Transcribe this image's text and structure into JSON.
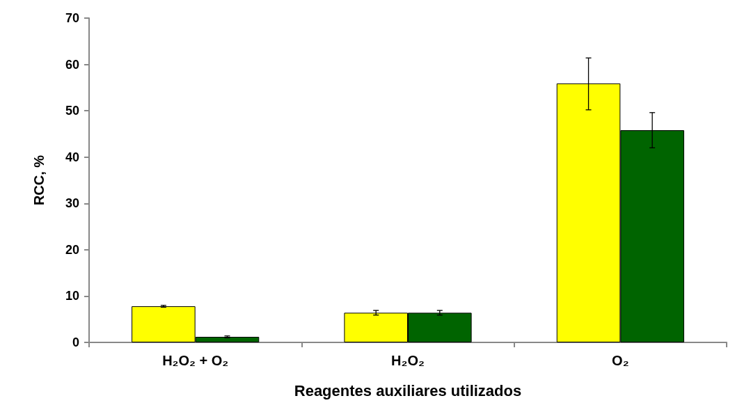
{
  "chart_data": {
    "type": "bar",
    "xlabel": "Reagentes auxiliares utilizados",
    "ylabel": "RCC, %",
    "categories": [
      "H₂O₂ + O₂",
      "H₂O₂",
      "O₂"
    ],
    "series": [
      {
        "color": "#ffff00",
        "values": [
          7.8,
          6.4,
          55.9
        ],
        "errors": [
          0.2,
          0.5,
          [
            50.2,
            61.4
          ]
        ]
      },
      {
        "color": "#006400",
        "values": [
          1.2,
          6.4,
          45.8
        ],
        "errors": [
          0.2,
          0.5,
          [
            42.0,
            49.6
          ]
        ]
      }
    ],
    "ylim": [
      0,
      70
    ],
    "yticks": [
      0,
      10,
      20,
      30,
      40,
      50,
      60,
      70
    ],
    "grid": false
  }
}
